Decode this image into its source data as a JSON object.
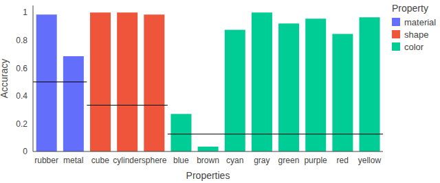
{
  "chart_data": {
    "type": "bar",
    "x_label": "Properties",
    "y_label": "Accuracy",
    "legend_title": "Property",
    "legend": "top-right",
    "grid": false,
    "categories": [
      "rubber",
      "metal",
      "cube",
      "cylinder",
      "sphere",
      "blue",
      "brown",
      "cyan",
      "gray",
      "green",
      "purple",
      "red",
      "yellow"
    ],
    "series": [
      {
        "name": "material",
        "color": "#636efa",
        "chance_level": 0.5,
        "values": [
          0.985,
          0.685,
          null,
          null,
          null,
          null,
          null,
          null,
          null,
          null,
          null,
          null,
          null
        ]
      },
      {
        "name": "shape",
        "color": "#ef553b",
        "chance_level": 0.333,
        "values": [
          null,
          null,
          1.0,
          1.0,
          0.985,
          null,
          null,
          null,
          null,
          null,
          null,
          null,
          null
        ]
      },
      {
        "name": "color",
        "color": "#00cc96",
        "chance_level": 0.125,
        "values": [
          null,
          null,
          null,
          null,
          null,
          0.27,
          0.035,
          0.875,
          1.0,
          0.92,
          0.955,
          0.845,
          0.965
        ]
      }
    ],
    "ylim": [
      0,
      1.05
    ],
    "yticks": [
      0,
      0.2,
      0.4,
      0.6,
      0.8,
      1
    ]
  }
}
